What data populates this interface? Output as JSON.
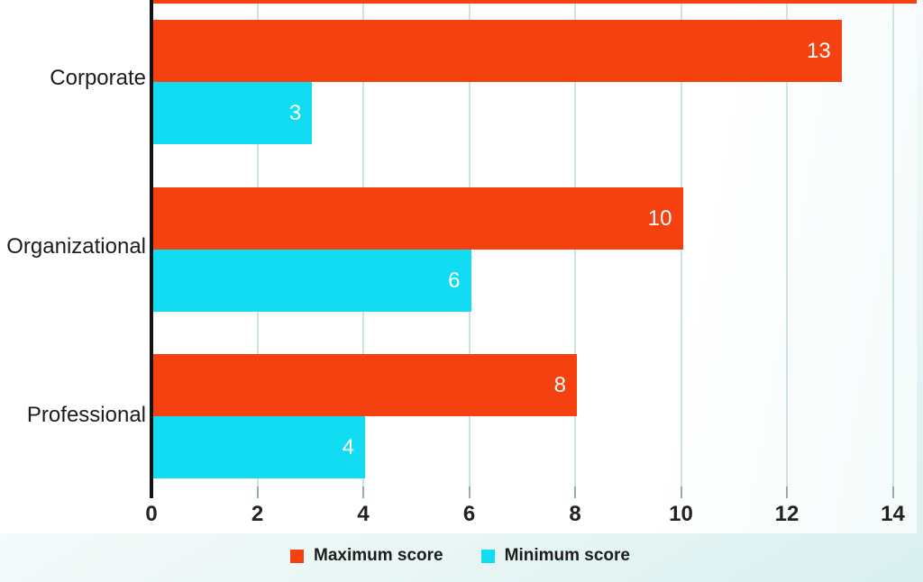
{
  "chart_data": {
    "type": "bar",
    "orientation": "horizontal",
    "title": "",
    "categories": [
      "Corporate",
      "Organizational",
      "Professional"
    ],
    "series": [
      {
        "name": "Maximum score",
        "color": "#f5400f",
        "values": [
          13,
          10,
          8
        ]
      },
      {
        "name": "Minimum score",
        "color": "#12dcf2",
        "values": [
          3,
          6,
          4
        ]
      }
    ],
    "value_labels": [
      [
        "13",
        "10",
        "8"
      ],
      [
        "3",
        "6",
        "4"
      ]
    ],
    "xlim": [
      0,
      14
    ],
    "xticks": [
      "0",
      "2",
      "4",
      "6",
      "8",
      "10",
      "12",
      "14"
    ],
    "grid": true,
    "gridline_color": "#cfe2e2",
    "axis_color": "#131313",
    "legend_position": "bottom"
  },
  "legend": {
    "max_label": "Maximum score",
    "min_label": "Minimum score"
  },
  "colors": {
    "maximum": "#f5400f",
    "minimum": "#12dcf2",
    "background_tint": "#d9efef",
    "canvas": "#ffffff",
    "text": "#1c1c1c"
  }
}
